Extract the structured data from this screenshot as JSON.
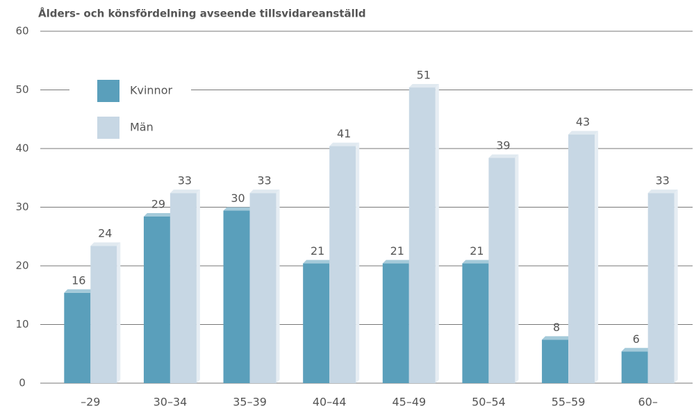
{
  "chart_data": {
    "type": "bar3d",
    "title": "Ålders- och könsfördelning avseende tillsvidareanställd",
    "categories": [
      "–29",
      "30–34",
      "35–39",
      "40–44",
      "45–49",
      "50–54",
      "55–59",
      "60–"
    ],
    "series": [
      {
        "name": "Kvinnor",
        "color": "#5a9fbb",
        "values": [
          16,
          29,
          30,
          21,
          21,
          21,
          8,
          6
        ]
      },
      {
        "name": "Män",
        "color": "#c7d7e4",
        "values": [
          24,
          33,
          33,
          41,
          51,
          39,
          43,
          33
        ]
      }
    ],
    "ylim": [
      0,
      60
    ],
    "yticks": [
      0,
      10,
      20,
      30,
      40,
      50,
      60
    ],
    "grid": true,
    "legend": "upper left"
  }
}
